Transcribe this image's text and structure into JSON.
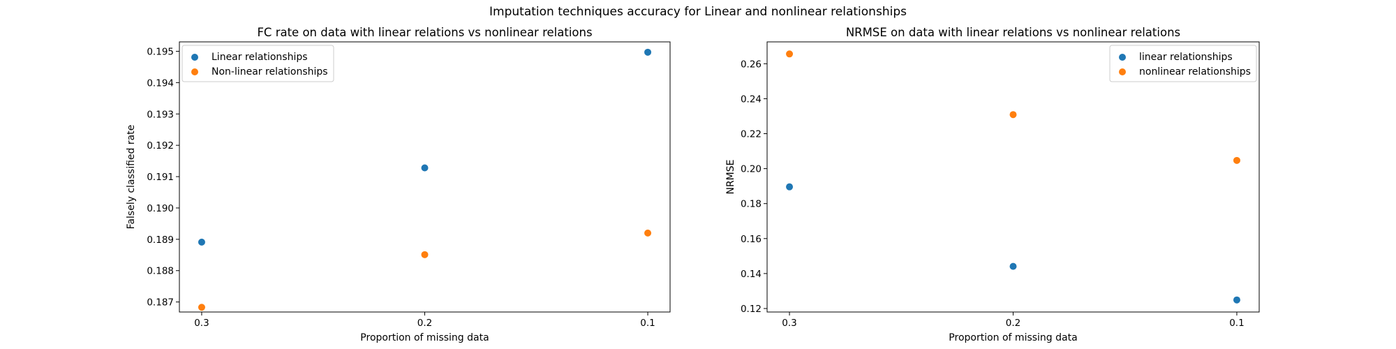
{
  "figure": {
    "suptitle": "Imputation techniques accuracy for Linear and nonlinear relationships"
  },
  "colors": {
    "linear": "#1f77b4",
    "nonlinear": "#ff7f0e"
  },
  "chart_data": [
    {
      "type": "scatter",
      "title": "FC rate on data with linear relations vs nonlinear relations",
      "xlabel": "Proportion of missing data",
      "ylabel": "Falsely classified rate",
      "x": [
        "0.3",
        "0.2",
        "0.1"
      ],
      "xlim": [
        -0.1,
        2.1
      ],
      "ylim": [
        0.18668,
        0.1953
      ],
      "yticks": [
        0.187,
        0.188,
        0.189,
        0.19,
        0.191,
        0.192,
        0.193,
        0.194,
        0.195
      ],
      "grid": false,
      "legend_position": "upper-left",
      "series": [
        {
          "name": "Linear relationships",
          "color": "#1f77b4",
          "values": [
            0.18891,
            0.19128,
            0.19497
          ]
        },
        {
          "name": "Non-linear relationships",
          "color": "#ff7f0e",
          "values": [
            0.18683,
            0.18851,
            0.1892
          ]
        }
      ]
    },
    {
      "type": "scatter",
      "title": "NRMSE on data with linear relations vs nonlinear relations",
      "xlabel": "Proportion of missing data",
      "ylabel": "NRMSE",
      "x": [
        "0.3",
        "0.2",
        "0.1"
      ],
      "xlim": [
        -0.1,
        2.1
      ],
      "ylim": [
        0.118,
        0.2725
      ],
      "yticks": [
        0.12,
        0.14,
        0.16,
        0.18,
        0.2,
        0.22,
        0.24,
        0.26
      ],
      "grid": false,
      "legend_position": "upper-right",
      "series": [
        {
          "name": "linear relationships",
          "color": "#1f77b4",
          "values": [
            0.1896,
            0.1441,
            0.1249
          ]
        },
        {
          "name": "nonlinear relationships",
          "color": "#ff7f0e",
          "values": [
            0.2656,
            0.2309,
            0.2047
          ]
        }
      ]
    }
  ]
}
